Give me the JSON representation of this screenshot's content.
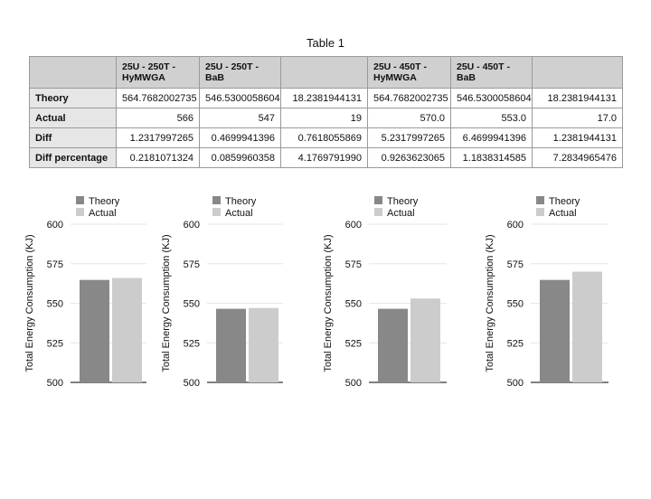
{
  "table": {
    "title": "Table 1",
    "columns": [
      "",
      "25U - 250T - HyMWGA",
      "25U - 250T - BaB",
      "",
      "25U - 450T - HyMWGA",
      "25U - 450T - BaB",
      ""
    ],
    "rows": [
      {
        "label": "Theory",
        "cells": [
          "564.7682002735",
          "546.5300058604",
          "18.2381944131",
          "564.7682002735",
          "546.5300058604",
          "18.2381944131"
        ]
      },
      {
        "label": "Actual",
        "cells": [
          "566",
          "547",
          "19",
          "570.0",
          "553.0",
          "17.0"
        ]
      },
      {
        "label": "Diff",
        "cells": [
          "1.2317997265",
          "0.4699941396",
          "0.7618055869",
          "5.2317997265",
          "6.4699941396",
          "1.2381944131"
        ]
      },
      {
        "label": "Diff percentage",
        "cells": [
          "0.2181071324",
          "0.0859960358",
          "4.1769791990",
          "0.9263623065",
          "1.1838314585",
          "7.2834965476"
        ]
      }
    ]
  },
  "colors": {
    "theory": "#888888",
    "actual": "#cccccc",
    "grid": "#e6e6e6",
    "axis": "#000000"
  },
  "chart_data": [
    {
      "type": "bar",
      "categories": [
        ""
      ],
      "series": [
        {
          "name": "Theory",
          "values": [
            564.77
          ]
        },
        {
          "name": "Actual",
          "values": [
            566
          ]
        }
      ],
      "ylabel": "Total Energy Consumption (KJ)",
      "ylim": [
        500,
        600
      ],
      "yticks": [
        "600",
        "575",
        "550",
        "525",
        "500"
      ],
      "grid": true,
      "legend": "top"
    },
    {
      "type": "bar",
      "categories": [
        ""
      ],
      "series": [
        {
          "name": "Theory",
          "values": [
            546.53
          ]
        },
        {
          "name": "Actual",
          "values": [
            547
          ]
        }
      ],
      "ylabel": "Total Energy Consumption (KJ)",
      "ylim": [
        500,
        600
      ],
      "yticks": [
        "600",
        "575",
        "550",
        "525",
        "500"
      ],
      "grid": true,
      "legend": "top"
    },
    {
      "type": "bar",
      "categories": [
        ""
      ],
      "series": [
        {
          "name": "Theory",
          "values": [
            546.53
          ]
        },
        {
          "name": "Actual",
          "values": [
            553
          ]
        }
      ],
      "ylabel": "Total Energy Consumption (KJ)",
      "ylim": [
        500,
        600
      ],
      "yticks": [
        "600",
        "575",
        "550",
        "525",
        "500"
      ],
      "grid": true,
      "legend": "top"
    },
    {
      "type": "bar",
      "categories": [
        ""
      ],
      "series": [
        {
          "name": "Theory",
          "values": [
            564.77
          ]
        },
        {
          "name": "Actual",
          "values": [
            570
          ]
        }
      ],
      "ylabel": "Total Energy Consumption (KJ)",
      "ylim": [
        500,
        600
      ],
      "yticks": [
        "600",
        "575",
        "550",
        "525",
        "500"
      ],
      "grid": true,
      "legend": "top"
    }
  ]
}
